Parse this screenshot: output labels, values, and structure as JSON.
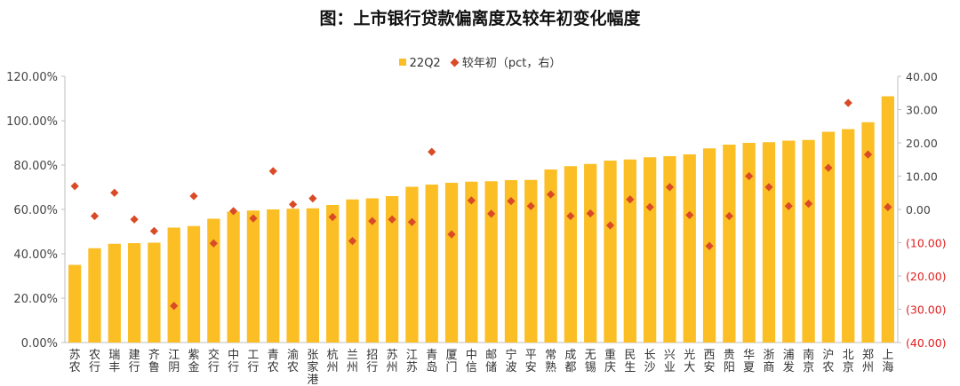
{
  "chart_data": {
    "type": "bar",
    "title": "图：上市银行贷款偏离度及较年初变化幅度",
    "categories": [
      "苏农",
      "农行",
      "瑞丰",
      "建行",
      "齐鲁",
      "江阴",
      "紫金",
      "交行",
      "中行",
      "工行",
      "青农",
      "渝农",
      "张家港",
      "杭州",
      "兰州",
      "招行",
      "苏州",
      "江苏",
      "青岛",
      "厦门",
      "中信",
      "邮储",
      "宁波",
      "平安",
      "常熟",
      "成都",
      "无锡",
      "重庆",
      "民生",
      "长沙",
      "兴业",
      "光大",
      "西安",
      "贵阳",
      "华夏",
      "浙商",
      "浦发",
      "南京",
      "沪农",
      "北京",
      "郑州",
      "上海"
    ],
    "series": [
      {
        "name": "22Q2",
        "axis": "left",
        "values": [
          35.0,
          42.5,
          44.5,
          44.8,
          45.0,
          51.8,
          52.5,
          55.8,
          59.0,
          59.5,
          60.0,
          60.3,
          60.5,
          62.0,
          64.5,
          65.0,
          66.0,
          70.2,
          71.2,
          72.0,
          72.5,
          72.7,
          73.2,
          73.3,
          78.0,
          79.5,
          80.5,
          82.0,
          82.5,
          83.5,
          84.0,
          84.8,
          87.5,
          89.2,
          90.0,
          90.3,
          91.0,
          91.3,
          95.0,
          96.2,
          99.3,
          111.0
        ]
      },
      {
        "name": "较年初（pct，右）",
        "axis": "right",
        "values": [
          7.0,
          -2.0,
          5.0,
          -3.0,
          -6.5,
          -29.0,
          4.0,
          -10.2,
          -0.5,
          -2.7,
          11.5,
          1.5,
          3.3,
          -2.3,
          -9.5,
          -3.5,
          -3.0,
          -3.8,
          17.3,
          -7.5,
          2.7,
          -1.3,
          2.5,
          1.0,
          4.5,
          -2.0,
          -1.2,
          -4.8,
          3.0,
          0.7,
          6.7,
          -1.7,
          -11.0,
          -2.0,
          10.0,
          6.7,
          1.0,
          1.7,
          12.5,
          32.0,
          16.5,
          0.7
        ]
      }
    ],
    "ylim_left": [
      0,
      120
    ],
    "yticks_left": [
      "0.00%",
      "20.00%",
      "40.00%",
      "60.00%",
      "80.00%",
      "100.00%",
      "120.00%"
    ],
    "ylim_right": [
      -40,
      40
    ],
    "yticks_right": [
      "(40.00)",
      "(30.00)",
      "(20.00)",
      "(10.00)",
      "0.00",
      "10.00",
      "20.00",
      "30.00",
      "40.00"
    ],
    "legend_position": "top-center",
    "colors": {
      "bar": "#FBBE24",
      "marker": "#D94A26",
      "negative_tick": "#E02020",
      "axis_text": "#444444"
    }
  }
}
